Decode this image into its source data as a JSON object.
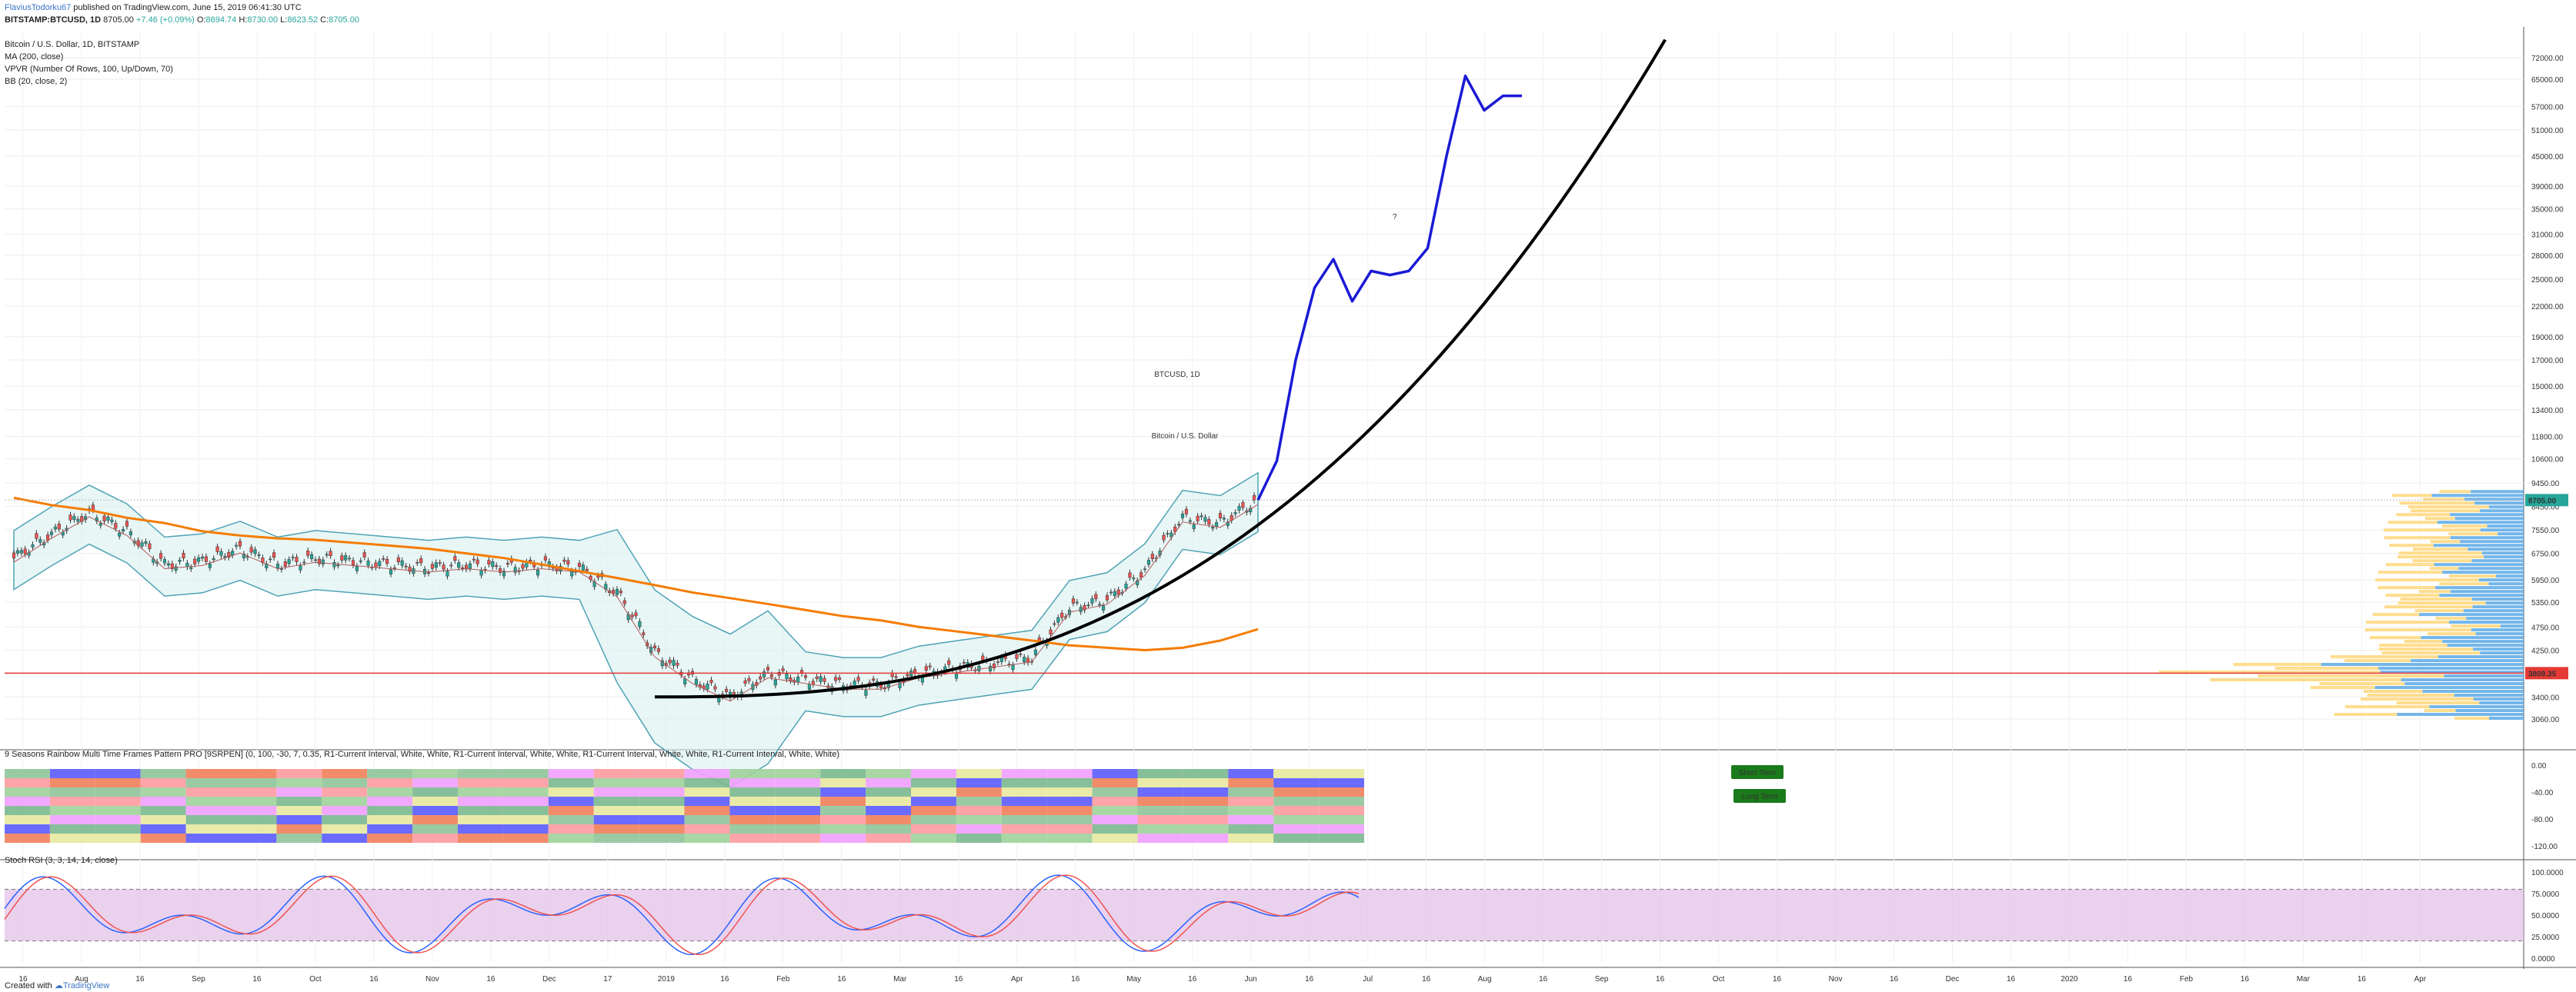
{
  "header": {
    "author": "FlaviusTodorku67",
    "published": "published on TradingView.com, June 15, 2019 06:41:30 UTC",
    "symbol": "BITSTAMP:BTCUSD, 1D",
    "last": "8705.00",
    "change": "+7.46 (+0.09%)",
    "o_label": "O:",
    "o_val": "8694.74",
    "h_label": "H:",
    "h_val": "8730.00",
    "l_label": "L:",
    "l_val": "8623.52",
    "c_label": "C:",
    "c_val": "8705.00"
  },
  "legend": [
    "Bitcoin / U.S. Dollar, 1D, BITSTAMP",
    "MA (200, close)",
    "VPVR (Number Of Rows, 100, Up/Down, 70)",
    "BB (20, close, 2)"
  ],
  "watermark": {
    "symbol": "BTCUSD, 1D",
    "name": "Bitcoin / U.S. Dollar"
  },
  "annotation": "?",
  "price_badges": {
    "last": "8705.00",
    "line": "3809.35"
  },
  "rainbow_title": "9 Seasons Rainbow Multi Time Frames Pattern PRO [9SRPEN] (0, 100, -30, 7, 0.35, R1-Current Interval, White, White, R1-Current Interval, White, White, R1-Current Interval, White, White, R1-Current Interval, White, White)",
  "stoch_title": "Stoch RSI (3, 3, 14, 14, close)",
  "badges": {
    "short": "Short Term",
    "long": "Long Term"
  },
  "footer": {
    "created": "Created with",
    "brand": "TradingView"
  },
  "colors": {
    "ma": "#f57c00",
    "bb": "#4fa3b5",
    "projection": "#1a1ad6",
    "curve": "#000000",
    "support": "#e53935",
    "stochK": "#2962ff",
    "stochD": "#ef5350",
    "stochBand": "#e1bee7"
  },
  "chart_data": {
    "type": "line",
    "price_scale": "log",
    "y_ticks": [
      "72000.00",
      "65000.00",
      "57000.00",
      "51000.00",
      "45000.00",
      "39000.00",
      "35000.00",
      "31000.00",
      "28000.00",
      "25000.00",
      "22000.00",
      "19000.00",
      "17000.00",
      "15000.00",
      "13400.00",
      "11800.00",
      "10600.00",
      "9450.00",
      "8450.00",
      "7550.00",
      "6750.00",
      "5950.00",
      "5350.00",
      "4750.00",
      "4250.00",
      "3800.00",
      "3400.00",
      "3060.00"
    ],
    "x_ticks": [
      "16",
      "Aug",
      "16",
      "Sep",
      "16",
      "Oct",
      "16",
      "Nov",
      "16",
      "Dec",
      "17",
      "2019",
      "16",
      "Feb",
      "16",
      "Mar",
      "16",
      "Apr",
      "16",
      "May",
      "16",
      "Jun",
      "16",
      "Jul",
      "16",
      "Aug",
      "16",
      "Sep",
      "16",
      "Oct",
      "16",
      "Nov",
      "16",
      "Dec",
      "16",
      "2020",
      "16",
      "Feb",
      "16",
      "Mar",
      "16",
      "Apr"
    ],
    "rainbow_ticks": [
      "0.00",
      "-40.00",
      "-80.00",
      "-120.00"
    ],
    "stoch_ticks": [
      "100.0000",
      "75.0000",
      "50.0000",
      "25.0000",
      "0.0000"
    ],
    "series": [
      {
        "name": "Bitcoin / U.S. Dollar",
        "kind": "close",
        "x_day": [
          0,
          10,
          20,
          30,
          40,
          50,
          60,
          70,
          80,
          90,
          100,
          110,
          120,
          130,
          140,
          150,
          160,
          170,
          180,
          190,
          200,
          210,
          220,
          230,
          240,
          250,
          260,
          270,
          280,
          290,
          300,
          310,
          320,
          330
        ],
        "values": [
          6600,
          7400,
          8200,
          7500,
          6400,
          6500,
          6900,
          6400,
          6600,
          6500,
          6400,
          6300,
          6400,
          6300,
          6400,
          6300,
          5600,
          4200,
          3700,
          3400,
          3800,
          3700,
          3600,
          3600,
          3800,
          3900,
          4000,
          4100,
          5200,
          5400,
          6200,
          8000,
          7800,
          8700
        ]
      },
      {
        "name": "MA (200, close)",
        "values": [
          8800,
          8500,
          8300,
          8000,
          7800,
          7500,
          7350,
          7250,
          7200,
          7100,
          7000,
          6900,
          6750,
          6600,
          6400,
          6200,
          6000,
          5800,
          5600,
          5450,
          5300,
          5150,
          5000,
          4900,
          4750,
          4650,
          4550,
          4450,
          4350,
          4300,
          4250,
          4300,
          4450,
          4700
        ]
      },
      {
        "name": "Projection",
        "x_day": [
          330,
          335,
          340,
          345,
          350,
          355,
          360,
          365,
          370,
          375,
          380,
          385,
          390,
          395,
          400
        ],
        "values": [
          8705,
          10500,
          17000,
          24000,
          27500,
          22500,
          26000,
          25500,
          26000,
          29000,
          45000,
          66000,
          56000,
          60000,
          60000
        ]
      }
    ],
    "support_level": 3809.35,
    "last_price": 8705.0,
    "stoch_levels": [
      20,
      80
    ]
  }
}
